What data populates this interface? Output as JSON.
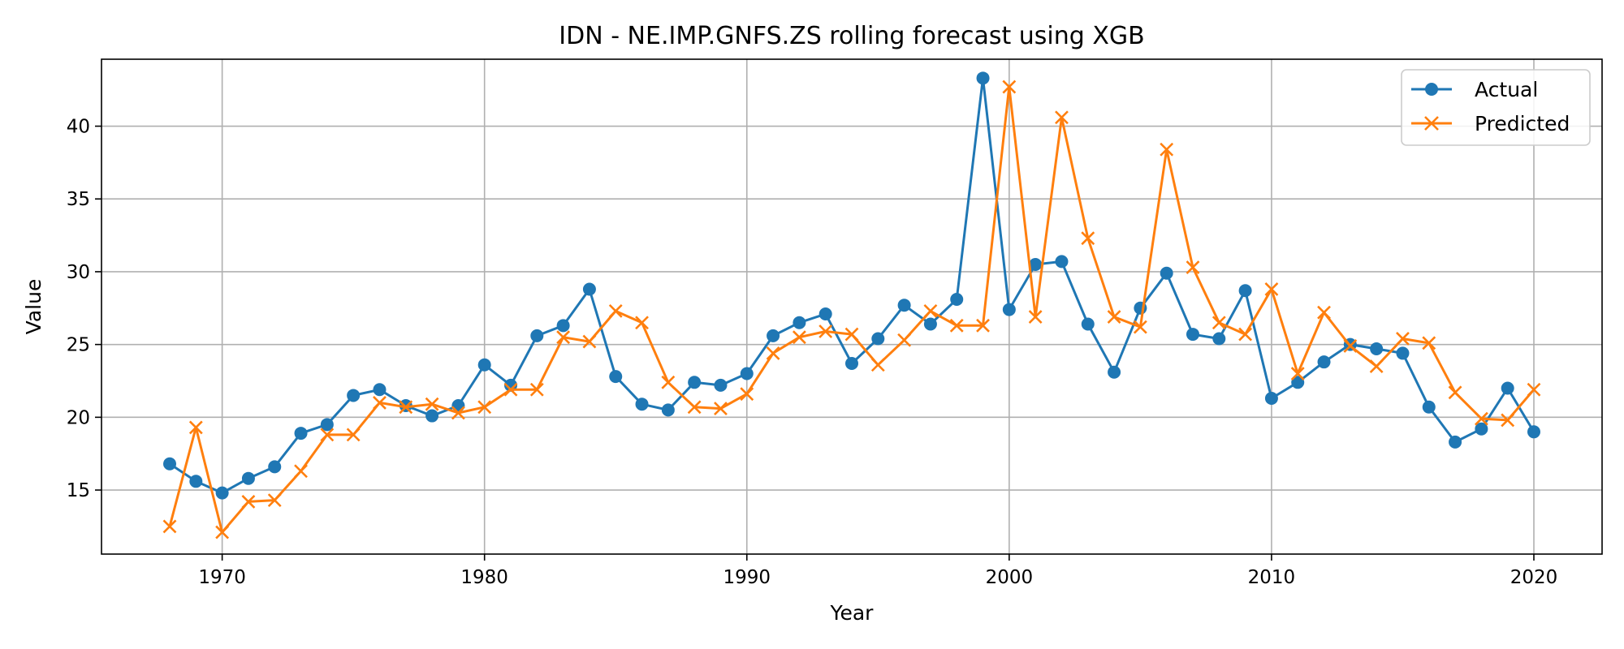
{
  "chart_data": {
    "type": "line",
    "title": "IDN - NE.IMP.GNFS.ZS rolling forecast using XGB",
    "xlabel": "Year",
    "ylabel": "Value",
    "xlim": [
      1965.4,
      2022.6
    ],
    "ylim": [
      10.6,
      44.6
    ],
    "xticks": [
      1970,
      1980,
      1990,
      2000,
      2010,
      2020
    ],
    "yticks": [
      15,
      20,
      25,
      30,
      35,
      40
    ],
    "grid": true,
    "legend_position": "top-right",
    "x": [
      1968,
      1969,
      1970,
      1971,
      1972,
      1973,
      1974,
      1975,
      1976,
      1977,
      1978,
      1979,
      1980,
      1981,
      1982,
      1983,
      1984,
      1985,
      1986,
      1987,
      1988,
      1989,
      1990,
      1991,
      1992,
      1993,
      1994,
      1995,
      1996,
      1997,
      1998,
      1999,
      2000,
      2001,
      2002,
      2003,
      2004,
      2005,
      2006,
      2007,
      2008,
      2009,
      2010,
      2011,
      2012,
      2013,
      2014,
      2015,
      2016,
      2017,
      2018,
      2019,
      2020
    ],
    "series": [
      {
        "name": "Actual",
        "color": "#1f77b4",
        "marker": "circle",
        "values": [
          16.8,
          15.6,
          14.8,
          15.8,
          16.6,
          18.9,
          19.5,
          21.5,
          21.9,
          20.8,
          20.1,
          20.8,
          23.6,
          22.2,
          25.6,
          26.3,
          28.8,
          22.8,
          20.9,
          20.5,
          22.4,
          22.2,
          23.0,
          25.6,
          26.5,
          27.1,
          23.7,
          25.4,
          27.7,
          26.4,
          28.1,
          43.3,
          27.4,
          30.5,
          30.7,
          26.4,
          23.1,
          27.5,
          29.9,
          25.7,
          25.4,
          28.7,
          21.3,
          22.4,
          23.8,
          25.0,
          24.7,
          24.4,
          20.7,
          18.3,
          19.2,
          22.0,
          19.0
        ]
      },
      {
        "name": "Predicted",
        "color": "#ff7f0e",
        "marker": "x",
        "values": [
          12.5,
          19.3,
          12.1,
          14.2,
          14.3,
          16.3,
          18.8,
          18.8,
          21.0,
          20.7,
          20.9,
          20.3,
          20.7,
          21.9,
          21.9,
          25.5,
          25.2,
          27.3,
          26.5,
          22.4,
          20.7,
          20.6,
          21.6,
          24.4,
          25.5,
          25.9,
          25.7,
          23.6,
          25.3,
          27.3,
          26.3,
          26.3,
          42.7,
          26.9,
          40.6,
          32.3,
          26.9,
          26.2,
          38.4,
          30.3,
          26.5,
          25.7,
          28.8,
          23.0,
          27.2,
          24.9,
          23.5,
          25.4,
          25.1,
          21.7,
          19.9,
          19.8,
          21.9
        ]
      }
    ]
  }
}
